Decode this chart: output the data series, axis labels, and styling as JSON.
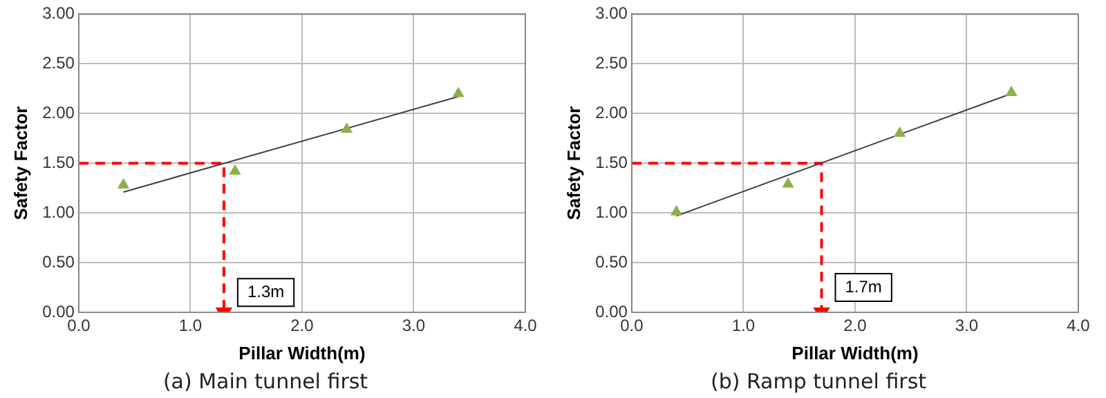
{
  "chart_data": [
    {
      "type": "scatter",
      "title": "(a) Main tunnel first",
      "xlabel": "Pillar Width(m)",
      "ylabel": "Safety Factor",
      "xlim": [
        0,
        4
      ],
      "xticks": [
        {
          "value": 0,
          "label": "0.0"
        },
        {
          "value": 1,
          "label": "1.0"
        },
        {
          "value": 2,
          "label": "2.0"
        },
        {
          "value": 3,
          "label": "3.0"
        },
        {
          "value": 4,
          "label": "4.0"
        }
      ],
      "ylim": [
        0,
        3
      ],
      "yticks": [
        {
          "value": 0,
          "label": "0.00"
        },
        {
          "value": 0.5,
          "label": "0.50"
        },
        {
          "value": 1,
          "label": "1.00"
        },
        {
          "value": 1.5,
          "label": "1.50"
        },
        {
          "value": 2,
          "label": "2.00"
        },
        {
          "value": 2.5,
          "label": "2.50"
        },
        {
          "value": 3,
          "label": "3.00"
        }
      ],
      "grid": true,
      "legend": false,
      "annotations": [
        {
          "text": "1.3m",
          "x": 1.3,
          "y": 0.2
        }
      ],
      "series": [
        {
          "type": "scatter",
          "color": "#8db04a",
          "marker": "triangle",
          "x": [
            0.4,
            1.4,
            2.4,
            3.4
          ],
          "values": [
            1.28,
            1.42,
            1.84,
            2.2
          ]
        },
        {
          "type": "line",
          "color": "#404040",
          "marker": "none",
          "line_style": "solid",
          "x": [
            0.4,
            3.4
          ],
          "values": [
            1.21,
            2.17
          ]
        },
        {
          "type": "line",
          "color": "#ff0000",
          "marker": "none",
          "line_style": "dashed",
          "x": [
            0,
            1.3,
            1.3
          ],
          "values": [
            1.5,
            1.5,
            0
          ]
        }
      ]
    },
    {
      "type": "scatter",
      "title": "(b) Ramp tunnel first",
      "xlabel": "Pillar Width(m)",
      "ylabel": "Safety Factor",
      "xlim": [
        0,
        4
      ],
      "xticks": [
        {
          "value": 0,
          "label": "0.0"
        },
        {
          "value": 1,
          "label": "1.0"
        },
        {
          "value": 2,
          "label": "2.0"
        },
        {
          "value": 3,
          "label": "3.0"
        },
        {
          "value": 4,
          "label": "4.0"
        }
      ],
      "ylim": [
        0,
        3
      ],
      "yticks": [
        {
          "value": 0,
          "label": "0.00"
        },
        {
          "value": 0.5,
          "label": "0.50"
        },
        {
          "value": 1,
          "label": "1.00"
        },
        {
          "value": 1.5,
          "label": "1.50"
        },
        {
          "value": 2,
          "label": "2.00"
        },
        {
          "value": 2.5,
          "label": "2.50"
        },
        {
          "value": 3,
          "label": "3.00"
        }
      ],
      "grid": true,
      "legend": false,
      "annotations": [
        {
          "text": "1.7m",
          "x": 1.7,
          "y": 0.25
        }
      ],
      "series": [
        {
          "type": "scatter",
          "color": "#8db04a",
          "marker": "triangle",
          "x": [
            0.4,
            1.4,
            2.4,
            3.4
          ],
          "values": [
            1.01,
            1.29,
            1.8,
            2.21
          ]
        },
        {
          "type": "line",
          "color": "#404040",
          "marker": "none",
          "line_style": "solid",
          "x": [
            0.4,
            3.4
          ],
          "values": [
            0.97,
            2.2
          ]
        },
        {
          "type": "line",
          "color": "#ff0000",
          "marker": "none",
          "line_style": "dashed",
          "x": [
            0,
            1.7,
            1.7
          ],
          "values": [
            1.5,
            1.5,
            0
          ]
        }
      ]
    }
  ]
}
